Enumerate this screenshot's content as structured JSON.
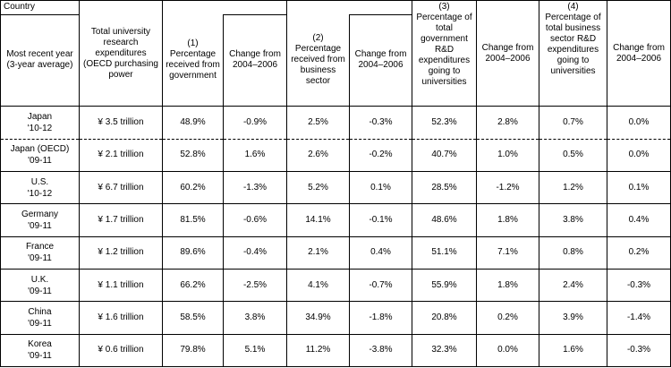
{
  "header": {
    "country": "Country",
    "most_recent_year": "Most recent year (3-year average)",
    "total_expenditures": "Total university research expenditures (OECD purchasing power",
    "col1_num": "(1)",
    "col1_label": "Percentage received from government",
    "col2_num": "(2)",
    "col2_label": "Percentage received from business sector",
    "col3_num": "(3)",
    "col3_label": "Percentage of total government R&D expenditures going to universities",
    "col4_num": "(4)",
    "col4_label": "Percentage of total business sector R&D expenditures going to universities",
    "change_label": "Change from 2004–2006"
  },
  "rows": [
    {
      "country": "Japan",
      "year": "'10-12",
      "total": "¥ 3.5 trillion",
      "gov": "48.9%",
      "gov_change": "-0.9%",
      "bus": "2.5%",
      "bus_change": "-0.3%",
      "gov_rd": "52.3%",
      "gov_rd_change": "2.8%",
      "bus_rd": "0.7%",
      "bus_rd_change": "0.0%"
    },
    {
      "country": "Japan (OECD)",
      "year": "'09-11",
      "total": "¥ 2.1 trillion",
      "gov": "52.8%",
      "gov_change": "1.6%",
      "bus": "2.6%",
      "bus_change": "-0.2%",
      "gov_rd": "40.7%",
      "gov_rd_change": "1.0%",
      "bus_rd": "0.5%",
      "bus_rd_change": "0.0%"
    },
    {
      "country": "U.S.",
      "year": "'10-12",
      "total": "¥ 6.7 trillion",
      "gov": "60.2%",
      "gov_change": "-1.3%",
      "bus": "5.2%",
      "bus_change": "0.1%",
      "gov_rd": "28.5%",
      "gov_rd_change": "-1.2%",
      "bus_rd": "1.2%",
      "bus_rd_change": "0.1%"
    },
    {
      "country": "Germany",
      "year": "'09-11",
      "total": "¥ 1.7 trillion",
      "gov": "81.5%",
      "gov_change": "-0.6%",
      "bus": "14.1%",
      "bus_change": "-0.1%",
      "gov_rd": "48.6%",
      "gov_rd_change": "1.8%",
      "bus_rd": "3.8%",
      "bus_rd_change": "0.4%"
    },
    {
      "country": "France",
      "year": "'09-11",
      "total": "¥ 1.2 trillion",
      "gov": "89.6%",
      "gov_change": "-0.4%",
      "bus": "2.1%",
      "bus_change": "0.4%",
      "gov_rd": "51.1%",
      "gov_rd_change": "7.1%",
      "bus_rd": "0.8%",
      "bus_rd_change": "0.2%"
    },
    {
      "country": "U.K.",
      "year": "'09-11",
      "total": "¥ 1.1 trillion",
      "gov": "66.2%",
      "gov_change": "-2.5%",
      "bus": "4.1%",
      "bus_change": "-0.7%",
      "gov_rd": "55.9%",
      "gov_rd_change": "1.8%",
      "bus_rd": "2.4%",
      "bus_rd_change": "-0.3%"
    },
    {
      "country": "China",
      "year": "'09-11",
      "total": "¥ 1.6 trillion",
      "gov": "58.5%",
      "gov_change": "3.8%",
      "bus": "34.9%",
      "bus_change": "-1.8%",
      "gov_rd": "20.8%",
      "gov_rd_change": "0.2%",
      "bus_rd": "3.9%",
      "bus_rd_change": "-1.4%"
    },
    {
      "country": "Korea",
      "year": "'09-11",
      "total": "¥ 0.6 trillion",
      "gov": "79.8%",
      "gov_change": "5.1%",
      "bus": "11.2%",
      "bus_change": "-3.8%",
      "gov_rd": "32.3%",
      "gov_rd_change": "0.0%",
      "bus_rd": "1.6%",
      "bus_rd_change": "-0.3%"
    }
  ]
}
